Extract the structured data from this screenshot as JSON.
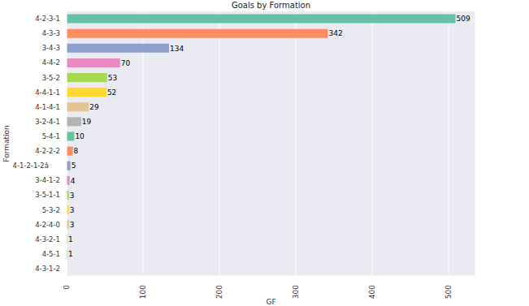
{
  "chart_data": {
    "type": "bar",
    "title": "Goals by Formation",
    "x_label": "GF",
    "y_label": "Formation",
    "orientation": "horizontal",
    "categories": [
      "4-2-3-1",
      "4-3-3",
      "3-4-3",
      "4-4-2",
      "3-5-2",
      "4-4-1-1",
      "4-1-4-1",
      "3-2-4-1",
      "5-4-1",
      "4-2-2-2",
      "4-1-2-1-2â",
      "3-4-1-2",
      "3-5-1-1",
      "5-3-2",
      "4-2-4-0",
      "4-3-2-1",
      "4-5-1",
      "4-3-1-2"
    ],
    "values": [
      509,
      342,
      134,
      70,
      53,
      52,
      29,
      19,
      10,
      8,
      5,
      4,
      3,
      3,
      3,
      1,
      1,
      0
    ],
    "colors": [
      "#66c2a5",
      "#fc8d62",
      "#8da0cb",
      "#e78ac3",
      "#a6d854",
      "#ffd92f",
      "#e5c494",
      "#b3b3b3",
      "#66c2a5",
      "#fc8d62",
      "#8da0cb",
      "#e78ac3",
      "#a6d854",
      "#ffd92f",
      "#e5c494",
      "#b3b3b3",
      "#66c2a5",
      "#fc8d62"
    ],
    "xlim": [
      0,
      535
    ],
    "xticks": [
      0,
      100,
      200,
      300,
      400,
      500
    ],
    "grid": true,
    "data_labels": true
  }
}
